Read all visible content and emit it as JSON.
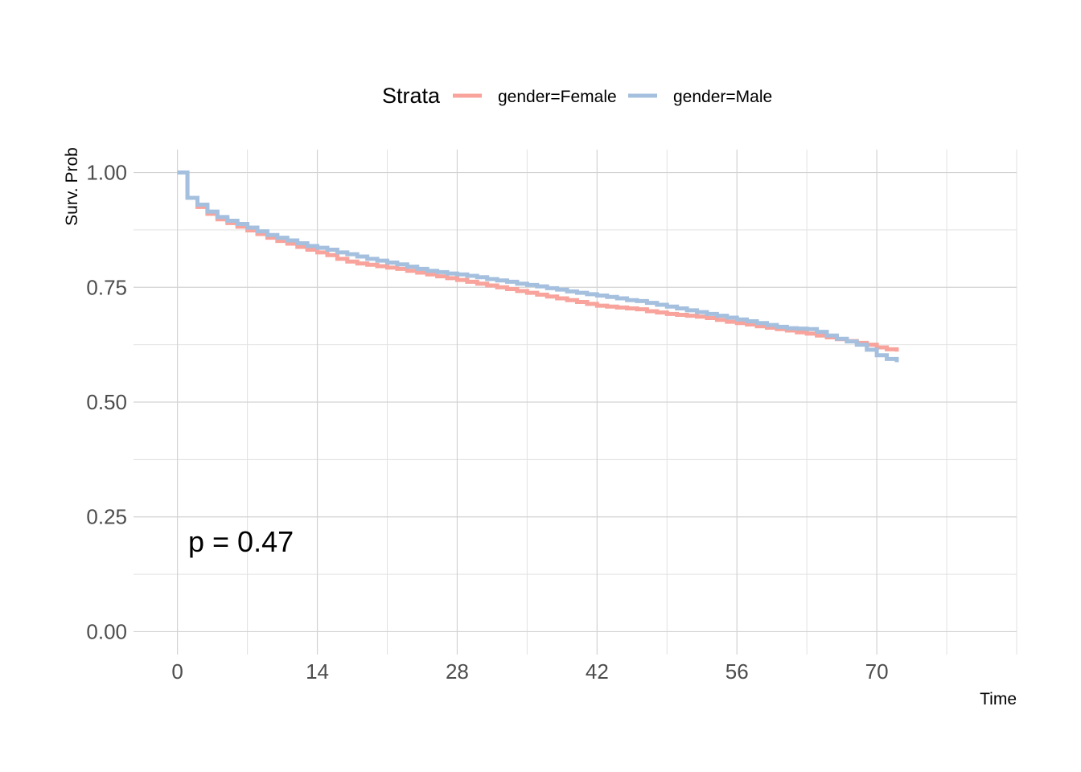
{
  "chart_data": {
    "type": "line",
    "subtype": "step",
    "xlabel": "Time",
    "ylabel": "Surv. Prob",
    "xlim": [
      -4.4,
      84
    ],
    "ylim": [
      -0.05,
      1.05
    ],
    "x_ticks": [
      0,
      14,
      28,
      42,
      56,
      70
    ],
    "x_tick_labels": [
      "0",
      "14",
      "28",
      "42",
      "56",
      "70"
    ],
    "x_minor_grid": [
      7,
      21,
      35,
      49,
      63,
      77,
      84
    ],
    "y_ticks": [
      0,
      0.25,
      0.5,
      0.75,
      1
    ],
    "y_tick_labels": [
      "0.00",
      "0.25",
      "0.50",
      "0.75",
      "1.00"
    ],
    "y_minor_grid": [
      0.125,
      0.375,
      0.625,
      0.875
    ],
    "grid": true,
    "legend": {
      "title": "Strata",
      "position": "top",
      "entries": [
        "gender=Female",
        "gender=Male"
      ]
    },
    "annotation": "p = 0.47",
    "series": [
      {
        "name": "gender=Female",
        "color": "#f8a39b",
        "x": [
          0,
          1,
          2,
          3,
          4,
          5,
          6,
          7,
          8,
          9,
          10,
          11,
          12,
          13,
          14,
          15,
          16,
          17,
          18,
          19,
          20,
          21,
          22,
          23,
          24,
          25,
          26,
          27,
          28,
          29,
          30,
          31,
          32,
          33,
          34,
          35,
          36,
          37,
          38,
          39,
          40,
          41,
          42,
          43,
          44,
          45,
          46,
          47,
          48,
          49,
          50,
          51,
          52,
          53,
          54,
          55,
          56,
          57,
          58,
          59,
          60,
          61,
          62,
          63,
          64,
          65,
          66,
          67,
          68,
          69,
          70,
          71,
          72
        ],
        "y": [
          1.0,
          0.945,
          0.925,
          0.91,
          0.898,
          0.89,
          0.882,
          0.874,
          0.866,
          0.858,
          0.851,
          0.845,
          0.838,
          0.832,
          0.826,
          0.82,
          0.812,
          0.806,
          0.802,
          0.799,
          0.796,
          0.793,
          0.79,
          0.786,
          0.782,
          0.778,
          0.774,
          0.77,
          0.766,
          0.762,
          0.758,
          0.754,
          0.75,
          0.746,
          0.742,
          0.738,
          0.734,
          0.73,
          0.726,
          0.722,
          0.718,
          0.714,
          0.71,
          0.708,
          0.706,
          0.704,
          0.702,
          0.698,
          0.695,
          0.692,
          0.69,
          0.688,
          0.686,
          0.683,
          0.679,
          0.675,
          0.672,
          0.669,
          0.665,
          0.662,
          0.659,
          0.656,
          0.652,
          0.649,
          0.645,
          0.641,
          0.637,
          0.633,
          0.629,
          0.625,
          0.619,
          0.615,
          0.61
        ]
      },
      {
        "name": "gender=Male",
        "color": "#a5c0de",
        "x": [
          0,
          1,
          2,
          3,
          4,
          5,
          6,
          7,
          8,
          9,
          10,
          11,
          12,
          13,
          14,
          15,
          16,
          17,
          18,
          19,
          20,
          21,
          22,
          23,
          24,
          25,
          26,
          27,
          28,
          29,
          30,
          31,
          32,
          33,
          34,
          35,
          36,
          37,
          38,
          39,
          40,
          41,
          42,
          43,
          44,
          45,
          46,
          47,
          48,
          49,
          50,
          51,
          52,
          53,
          54,
          55,
          56,
          57,
          58,
          59,
          60,
          61,
          62,
          63,
          64,
          65,
          66,
          67,
          68,
          69,
          70,
          71,
          72
        ],
        "y": [
          1.0,
          0.945,
          0.93,
          0.915,
          0.903,
          0.895,
          0.888,
          0.88,
          0.872,
          0.864,
          0.858,
          0.852,
          0.846,
          0.84,
          0.836,
          0.832,
          0.826,
          0.822,
          0.817,
          0.812,
          0.808,
          0.804,
          0.8,
          0.795,
          0.79,
          0.786,
          0.783,
          0.78,
          0.778,
          0.775,
          0.772,
          0.768,
          0.765,
          0.762,
          0.758,
          0.755,
          0.752,
          0.748,
          0.745,
          0.741,
          0.738,
          0.735,
          0.732,
          0.729,
          0.726,
          0.722,
          0.72,
          0.716,
          0.712,
          0.708,
          0.704,
          0.7,
          0.696,
          0.692,
          0.688,
          0.684,
          0.68,
          0.676,
          0.672,
          0.668,
          0.664,
          0.661,
          0.66,
          0.659,
          0.653,
          0.645,
          0.638,
          0.632,
          0.625,
          0.614,
          0.602,
          0.594,
          0.587
        ]
      }
    ]
  }
}
